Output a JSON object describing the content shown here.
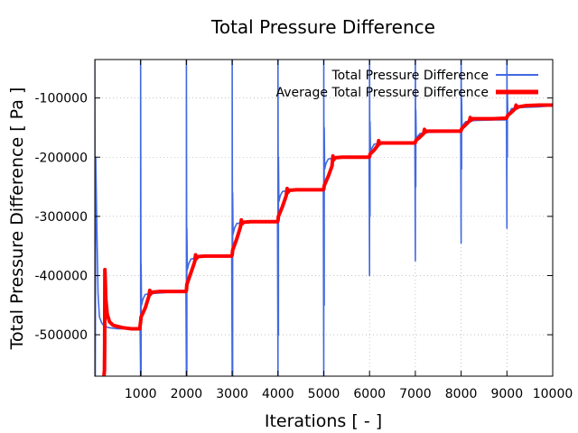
{
  "chart_data": {
    "type": "line",
    "title": "Total Pressure Difference",
    "xlabel": "Iterations [ - ]",
    "ylabel": "Total Pressure Difference [ Pa ]",
    "xlim": [
      0,
      10000
    ],
    "ylim": [
      -570000,
      -35000
    ],
    "grid": true,
    "legend_position": "top-right",
    "x_ticks": [
      1000,
      2000,
      3000,
      4000,
      5000,
      6000,
      7000,
      8000,
      9000,
      10000
    ],
    "x_tick_labels": [
      "1000",
      "2000",
      "3000",
      "4000",
      "5000",
      "6000",
      "7000",
      "8000",
      "9000",
      "10000"
    ],
    "y_ticks": [
      -500000,
      -400000,
      -300000,
      -200000,
      -100000
    ],
    "y_tick_labels": [
      "-500000",
      "-400000",
      "-300000",
      "-200000",
      "-100000"
    ],
    "series": [
      {
        "name": "Total Pressure Difference",
        "color": "#4169e1",
        "x": [
          0,
          10,
          20,
          40,
          70,
          100,
          150,
          200,
          300,
          500,
          800,
          990,
          1000,
          1000,
          1010,
          1010,
          1020,
          1050,
          1100,
          1300,
          1700,
          1990,
          2000,
          2000,
          2010,
          2010,
          2020,
          2050,
          2100,
          2300,
          2700,
          2990,
          3000,
          3000,
          3010,
          3010,
          3020,
          3050,
          3100,
          3300,
          3700,
          3990,
          4000,
          4000,
          4010,
          4010,
          4020,
          4050,
          4100,
          4300,
          4700,
          4990,
          5000,
          5000,
          5010,
          5010,
          5020,
          5050,
          5100,
          5300,
          5700,
          5990,
          6000,
          6000,
          6010,
          6010,
          6020,
          6050,
          6100,
          6300,
          6700,
          6990,
          7000,
          7000,
          7010,
          7010,
          7020,
          7050,
          7100,
          7300,
          7700,
          7990,
          8000,
          8000,
          8010,
          8010,
          8020,
          8050,
          8100,
          8300,
          8700,
          8990,
          9000,
          9000,
          9010,
          9010,
          9020,
          9050,
          9100,
          9300,
          9700,
          10000
        ],
        "values": [
          -35000,
          -570000,
          -200000,
          -300000,
          -430000,
          -470000,
          -480000,
          -485000,
          -488000,
          -490000,
          -490000,
          -490000,
          -570000,
          -35000,
          -570000,
          -380000,
          -450000,
          -440000,
          -432000,
          -430000,
          -428000,
          -428000,
          -570000,
          -35000,
          -570000,
          -320000,
          -390000,
          -380000,
          -372000,
          -369000,
          -368000,
          -368000,
          -570000,
          -35000,
          -570000,
          -260000,
          -330000,
          -320000,
          -312000,
          -310000,
          -309000,
          -309000,
          -570000,
          -35000,
          -500000,
          -200000,
          -275000,
          -265000,
          -258000,
          -255000,
          -255000,
          -255000,
          -570000,
          -35000,
          -450000,
          -150000,
          -220000,
          -210000,
          -203000,
          -201000,
          -200000,
          -200000,
          -400000,
          -35000,
          -300000,
          -140000,
          -190000,
          -185000,
          -178000,
          -176000,
          -175000,
          -175000,
          -375000,
          -35000,
          -250000,
          -120000,
          -170000,
          -165000,
          -160000,
          -158000,
          -157000,
          -157000,
          -345000,
          -35000,
          -220000,
          -100000,
          -150000,
          -145000,
          -140000,
          -138000,
          -137000,
          -137000,
          -320000,
          -35000,
          -200000,
          -90000,
          -130000,
          -125000,
          -118000,
          -116000,
          -115000,
          -113000
        ]
      },
      {
        "name": "Average Total Pressure Difference",
        "color": "#ff0000",
        "x": [
          200,
          210,
          215,
          220,
          225,
          240,
          270,
          320,
          400,
          600,
          800,
          980,
          1000,
          1010,
          1100,
          1180,
          1200,
          1210,
          1250,
          1400,
          1700,
          1990,
          2000,
          2010,
          2100,
          2180,
          2200,
          2210,
          2250,
          2400,
          2700,
          2990,
          3000,
          3010,
          3100,
          3180,
          3200,
          3210,
          3250,
          3400,
          3700,
          3990,
          4000,
          4010,
          4100,
          4180,
          4200,
          4210,
          4250,
          4400,
          4700,
          4990,
          5000,
          5010,
          5100,
          5180,
          5200,
          5210,
          5250,
          5400,
          5700,
          5990,
          6000,
          6010,
          6100,
          6180,
          6200,
          6210,
          6250,
          6400,
          6700,
          6990,
          7000,
          7010,
          7100,
          7180,
          7200,
          7210,
          7250,
          7400,
          7700,
          7990,
          8000,
          8010,
          8100,
          8180,
          8200,
          8210,
          8250,
          8400,
          8700,
          8990,
          9000,
          9010,
          9100,
          9180,
          9200,
          9210,
          9250,
          9400,
          9700,
          10000
        ],
        "values": [
          -570000,
          -560000,
          -520000,
          -390000,
          -400000,
          -440000,
          -465000,
          -478000,
          -484000,
          -488000,
          -490000,
          -490000,
          -478000,
          -470000,
          -455000,
          -435000,
          -425000,
          -432000,
          -428000,
          -427000,
          -427000,
          -427000,
          -425000,
          -415000,
          -395000,
          -377000,
          -365000,
          -372000,
          -368000,
          -367000,
          -367000,
          -367000,
          -365000,
          -357000,
          -338000,
          -318000,
          -306000,
          -313000,
          -310000,
          -309000,
          -309000,
          -309000,
          -307000,
          -300000,
          -283000,
          -265000,
          -253000,
          -260000,
          -256000,
          -255000,
          -255000,
          -255000,
          -254000,
          -248000,
          -232000,
          -215000,
          -198000,
          -205000,
          -201000,
          -200000,
          -200000,
          -200000,
          -199000,
          -195000,
          -188000,
          -180000,
          -172000,
          -178000,
          -176000,
          -176000,
          -176000,
          -176000,
          -175000,
          -172000,
          -166000,
          -160000,
          -153000,
          -158000,
          -156000,
          -156000,
          -156000,
          -156000,
          -155000,
          -152000,
          -145000,
          -139000,
          -133000,
          -138000,
          -135000,
          -135000,
          -135000,
          -134000,
          -133000,
          -130000,
          -124000,
          -118000,
          -112000,
          -117000,
          -115000,
          -113000,
          -112000,
          -112000
        ]
      }
    ]
  }
}
